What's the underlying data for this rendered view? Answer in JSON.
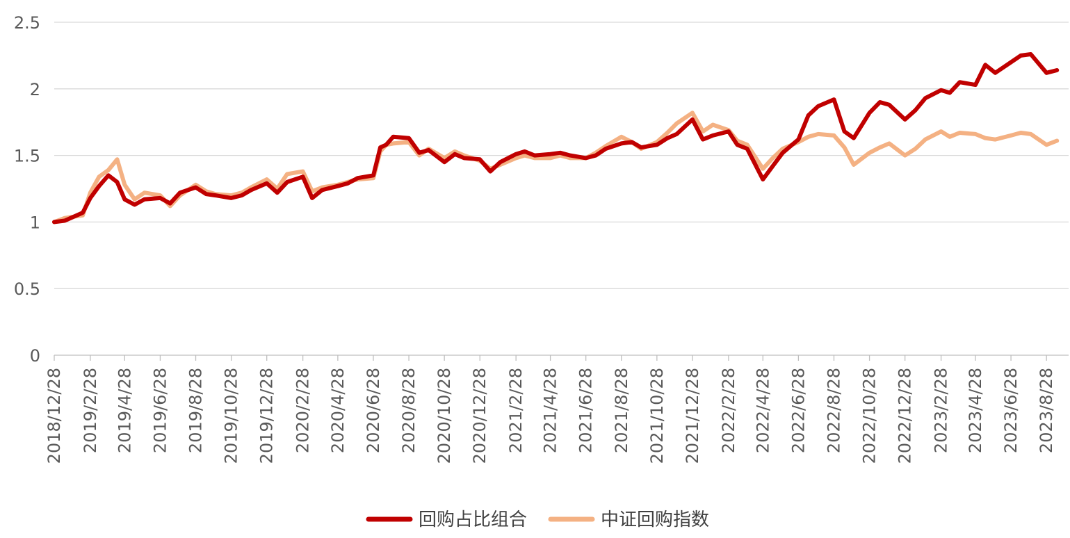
{
  "chart_data": {
    "type": "line",
    "ylim": [
      0,
      2.5
    ],
    "yticks": [
      "0",
      "0.5",
      "1",
      "1.5",
      "2",
      "2.5"
    ],
    "grid": true,
    "legend_position": "bottom",
    "x": [
      "2018/12/28",
      "2019/1/15",
      "2019/2/15",
      "2019/2/28",
      "2019/3/15",
      "2019/3/31",
      "2019/4/15",
      "2019/4/28",
      "2019/5/15",
      "2019/6/1",
      "2019/6/28",
      "2019/7/15",
      "2019/8/1",
      "2019/8/28",
      "2019/9/15",
      "2019/10/1",
      "2019/10/28",
      "2019/11/15",
      "2019/12/1",
      "2019/12/28",
      "2020/1/15",
      "2020/2/1",
      "2020/2/28",
      "2020/3/15",
      "2020/4/1",
      "2020/4/28",
      "2020/5/15",
      "2020/6/1",
      "2020/6/28",
      "2020/7/10",
      "2020/7/20",
      "2020/8/1",
      "2020/8/28",
      "2020/9/15",
      "2020/10/1",
      "2020/10/28",
      "2020/11/15",
      "2020/12/1",
      "2020/12/28",
      "2021/1/15",
      "2021/2/1",
      "2021/2/28",
      "2021/3/15",
      "2021/4/1",
      "2021/4/28",
      "2021/5/15",
      "2021/6/1",
      "2021/6/28",
      "2021/7/15",
      "2021/8/1",
      "2021/8/28",
      "2021/9/15",
      "2021/10/1",
      "2021/10/28",
      "2021/11/15",
      "2021/12/1",
      "2021/12/28",
      "2022/1/15",
      "2022/2/1",
      "2022/2/28",
      "2022/3/15",
      "2022/4/1",
      "2022/4/28",
      "2022/5/15",
      "2022/6/1",
      "2022/6/28",
      "2022/7/15",
      "2022/8/1",
      "2022/8/28",
      "2022/9/15",
      "2022/10/1",
      "2022/10/28",
      "2022/11/15",
      "2022/12/1",
      "2022/12/28",
      "2023/1/15",
      "2023/2/1",
      "2023/2/28",
      "2023/3/15",
      "2023/4/1",
      "2023/4/28",
      "2023/5/15",
      "2023/6/1",
      "2023/6/28",
      "2023/7/15",
      "2023/8/1",
      "2023/8/28",
      "2023/9/15"
    ],
    "xtick_labels": [
      "2018/12/28",
      "2019/2/28",
      "2019/4/28",
      "2019/6/28",
      "2019/8/28",
      "2019/10/28",
      "2019/12/28",
      "2020/2/28",
      "2020/4/28",
      "2020/6/28",
      "2020/8/28",
      "2020/10/28",
      "2020/12/28",
      "2021/2/28",
      "2021/4/28",
      "2021/6/28",
      "2021/8/28",
      "2021/10/28",
      "2021/12/28",
      "2022/2/28",
      "2022/4/28",
      "2022/6/28",
      "2022/8/28",
      "2022/10/28",
      "2022/12/28",
      "2023/2/28",
      "2023/4/28",
      "2023/6/28",
      "2023/8/28"
    ],
    "series": [
      {
        "name": "回购占比组合",
        "color": "#C00000",
        "values": [
          1.0,
          1.01,
          1.07,
          1.18,
          1.27,
          1.35,
          1.3,
          1.17,
          1.13,
          1.17,
          1.18,
          1.14,
          1.22,
          1.26,
          1.21,
          1.2,
          1.18,
          1.2,
          1.24,
          1.29,
          1.22,
          1.3,
          1.34,
          1.18,
          1.24,
          1.27,
          1.29,
          1.33,
          1.35,
          1.56,
          1.58,
          1.64,
          1.63,
          1.52,
          1.54,
          1.45,
          1.51,
          1.48,
          1.47,
          1.38,
          1.45,
          1.51,
          1.53,
          1.5,
          1.51,
          1.52,
          1.5,
          1.48,
          1.5,
          1.55,
          1.59,
          1.6,
          1.56,
          1.58,
          1.63,
          1.66,
          1.77,
          1.62,
          1.65,
          1.68,
          1.58,
          1.55,
          1.32,
          1.42,
          1.52,
          1.62,
          1.8,
          1.87,
          1.92,
          1.68,
          1.63,
          1.82,
          1.9,
          1.88,
          1.77,
          1.84,
          1.93,
          1.99,
          1.97,
          2.05,
          2.03,
          2.18,
          2.12,
          2.2,
          2.25,
          2.26,
          2.12,
          2.14
        ]
      },
      {
        "name": "中证回购指数",
        "color": "#F4B183",
        "values": [
          1.0,
          1.03,
          1.05,
          1.22,
          1.34,
          1.39,
          1.47,
          1.28,
          1.17,
          1.22,
          1.2,
          1.12,
          1.2,
          1.28,
          1.23,
          1.21,
          1.2,
          1.22,
          1.26,
          1.32,
          1.25,
          1.36,
          1.38,
          1.23,
          1.26,
          1.28,
          1.3,
          1.32,
          1.33,
          1.53,
          1.58,
          1.59,
          1.6,
          1.5,
          1.55,
          1.48,
          1.53,
          1.5,
          1.46,
          1.4,
          1.43,
          1.48,
          1.5,
          1.48,
          1.48,
          1.5,
          1.48,
          1.48,
          1.52,
          1.57,
          1.64,
          1.6,
          1.55,
          1.6,
          1.67,
          1.74,
          1.82,
          1.68,
          1.73,
          1.69,
          1.61,
          1.58,
          1.4,
          1.48,
          1.55,
          1.6,
          1.64,
          1.66,
          1.65,
          1.56,
          1.43,
          1.52,
          1.56,
          1.59,
          1.5,
          1.55,
          1.62,
          1.68,
          1.64,
          1.67,
          1.66,
          1.63,
          1.62,
          1.65,
          1.67,
          1.66,
          1.58,
          1.61
        ]
      }
    ]
  }
}
